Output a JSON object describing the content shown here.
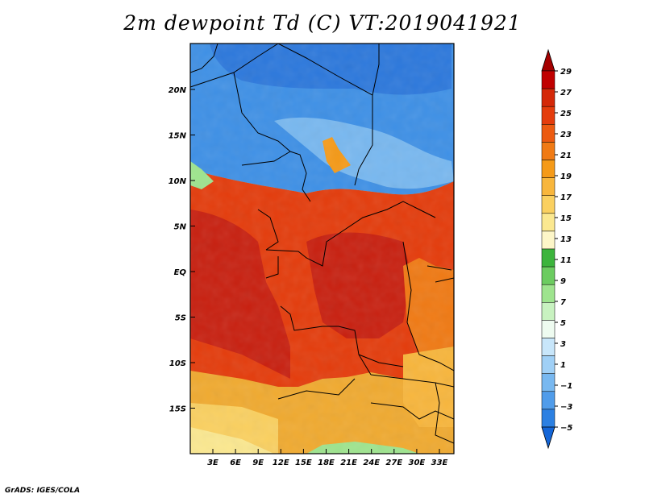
{
  "title": "2m dewpoint Td (C) VT:2019041921",
  "credit": "GrADS: IGES/COLA",
  "lat_ticks": [
    "20N",
    "15N",
    "10N",
    "5N",
    "EQ",
    "5S",
    "10S",
    "15S"
  ],
  "lon_ticks": [
    "3E",
    "6E",
    "9E",
    "12E",
    "15E",
    "18E",
    "21E",
    "24E",
    "27E",
    "30E",
    "33E"
  ],
  "colorbar": {
    "labels": [
      "29",
      "27",
      "25",
      "23",
      "21",
      "19",
      "17",
      "15",
      "13",
      "11",
      "9",
      "7",
      "5",
      "3",
      "1",
      "-1",
      "-3",
      "-5"
    ],
    "colors": [
      "#a50000",
      "#c00000",
      "#d42808",
      "#e43c0c",
      "#ec5a10",
      "#f07a14",
      "#f59a18",
      "#f8b63c",
      "#fad060",
      "#fbe890",
      "#fdf6c8",
      "#3cb43c",
      "#6ccc60",
      "#9ee48e",
      "#c8f2c0",
      "#eefbf0",
      "#c8e6fa",
      "#a0d0f6",
      "#78b8f0",
      "#509cea",
      "#2c80e2",
      "#1466d8"
    ]
  },
  "map": {
    "region": "Central & West Africa",
    "lon_range": [
      0,
      35
    ],
    "lat_range": [
      -20,
      25
    ]
  }
}
